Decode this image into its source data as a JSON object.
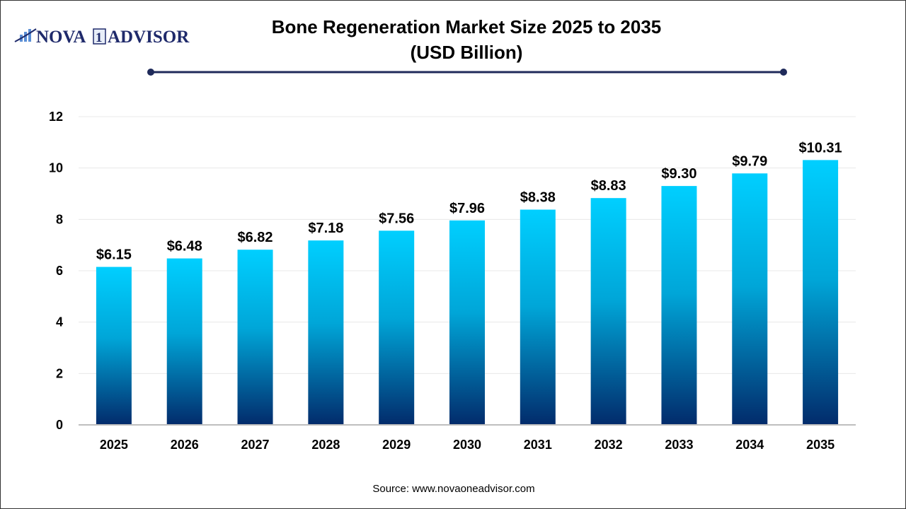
{
  "logo": {
    "text_left": "NOVA",
    "text_mark": "1",
    "text_right": "ADVISOR"
  },
  "colors": {
    "bar_top": "#00cfff",
    "bar_bottom": "#022b6b",
    "title_rule": "#1f2a5a",
    "grid": "#e8e8e8",
    "axis": "#bfbfbf"
  },
  "source": "Source: www.novaoneadvisor.com",
  "chart_data": {
    "type": "bar",
    "title_line1": "Bone Regeneration Market Size 2025 to 2035",
    "title_line2": "(USD Billion)",
    "categories": [
      "2025",
      "2026",
      "2027",
      "2028",
      "2029",
      "2030",
      "2031",
      "2032",
      "2033",
      "2034",
      "2035"
    ],
    "values": [
      6.15,
      6.48,
      6.82,
      7.18,
      7.56,
      7.96,
      8.38,
      8.83,
      9.3,
      9.79,
      10.31
    ],
    "data_labels": [
      "$6.15",
      "$6.48",
      "$6.82",
      "$7.18",
      "$7.56",
      "$7.96",
      "$8.38",
      "$8.83",
      "$9.30",
      "$9.79",
      "$10.31"
    ],
    "yticks": [
      0,
      2,
      4,
      6,
      8,
      10,
      12
    ],
    "ylim": [
      0,
      12
    ],
    "grid": true,
    "legend": "none"
  }
}
